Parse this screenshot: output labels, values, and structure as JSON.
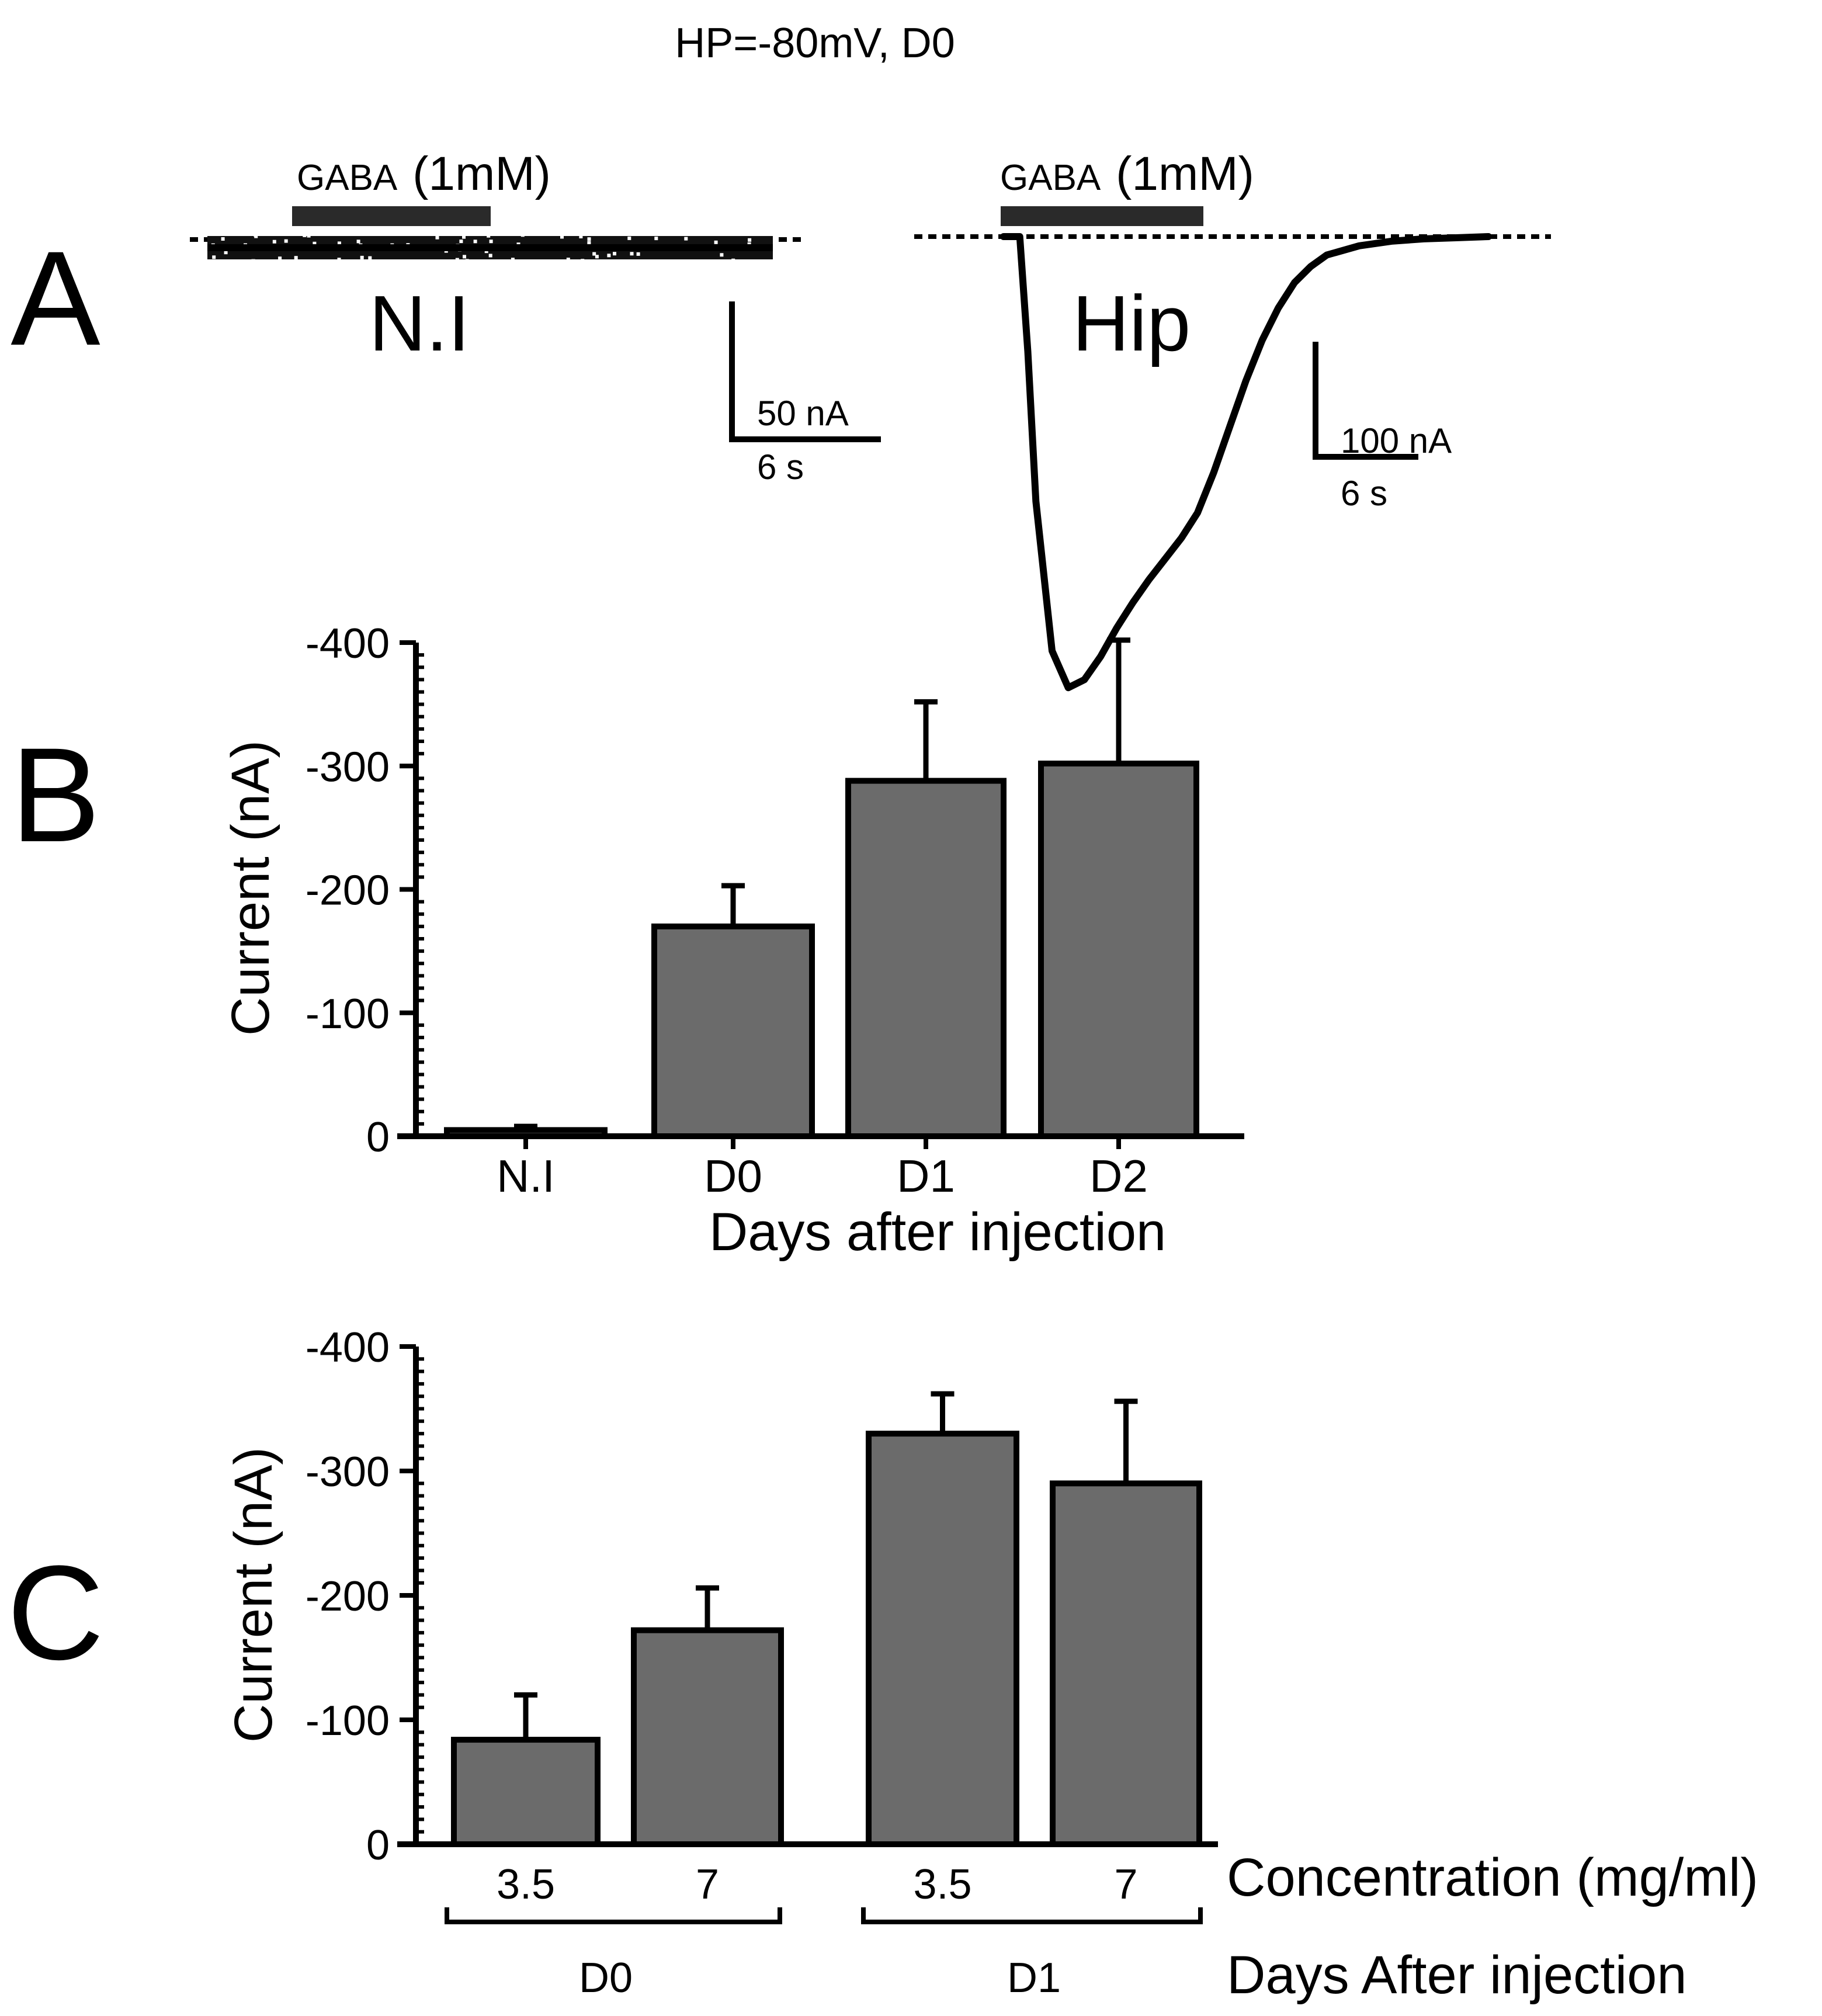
{
  "figure_title": "HP=-80mV, D0",
  "colors": {
    "bar_fill": "#6b6b6b",
    "ink": "#000000",
    "background": "#ffffff"
  },
  "chart_data": [
    {
      "panel": "A",
      "type": "line",
      "note": "Current traces in response to GABA (1mM); peak of Hip trace about -390 nA",
      "traces": [
        {
          "name": "N.I",
          "label": "N.I",
          "application_label": "GABA",
          "application_conc": "(1mM)",
          "time_s": [
            0,
            3,
            6,
            9,
            12,
            15,
            18,
            21,
            24,
            27,
            30
          ],
          "current_nA": [
            0,
            0,
            0,
            0,
            0,
            0,
            0,
            0,
            0,
            0,
            0
          ],
          "scale_bar": {
            "current": "50 nA",
            "time": "6 s"
          }
        },
        {
          "name": "Hip",
          "label": "Hip",
          "application_label": "GABA",
          "application_conc": "(1mM)",
          "time_s": [
            0,
            1,
            1.5,
            2,
            3,
            4,
            5,
            6,
            7,
            8,
            9,
            10,
            11,
            12,
            13,
            14,
            15,
            16,
            17,
            18,
            19,
            20,
            22,
            24,
            26,
            28,
            30
          ],
          "current_nA": [
            0,
            0,
            -100,
            -230,
            -360,
            -392,
            -385,
            -365,
            -340,
            -318,
            -298,
            -280,
            -262,
            -240,
            -205,
            -165,
            -125,
            -90,
            -62,
            -40,
            -26,
            -16,
            -8,
            -4,
            -2,
            -1,
            0
          ],
          "scale_bar": {
            "current": "100 nA",
            "time": "6 s"
          }
        }
      ]
    },
    {
      "panel": "B",
      "type": "bar",
      "title": "",
      "categories": [
        "N.I",
        "D0",
        "D1",
        "D2"
      ],
      "values": [
        -5,
        -170,
        -288,
        -302
      ],
      "errors": [
        3,
        33,
        64,
        100
      ],
      "xlabel": "Days after injection",
      "ylabel": "Current (nA)",
      "ylim": [
        0,
        -400
      ],
      "yticks": [
        0,
        -100,
        -200,
        -300,
        -400
      ],
      "ytick_labels": [
        "0",
        "-100",
        "-200",
        "-300",
        "-400"
      ]
    },
    {
      "panel": "C",
      "type": "bar",
      "title": "",
      "categories": [
        "3.5",
        "7",
        "3.5",
        "7"
      ],
      "groups": [
        "D0",
        "D0",
        "D1",
        "D1"
      ],
      "group_labels": [
        "D0",
        "D1"
      ],
      "values": [
        -84,
        -172,
        -330,
        -290
      ],
      "errors": [
        36,
        34,
        32,
        66
      ],
      "xlabel": "Concentration (mg/ml)",
      "xlabel2": "Days After injection",
      "ylabel": "Current (nA)",
      "ylim": [
        0,
        -400
      ],
      "yticks": [
        0,
        -100,
        -200,
        -300,
        -400
      ],
      "ytick_labels": [
        "0",
        "-100",
        "-200",
        "-300",
        "-400"
      ]
    }
  ],
  "panels": {
    "A": "A",
    "B": "B",
    "C": "C"
  }
}
